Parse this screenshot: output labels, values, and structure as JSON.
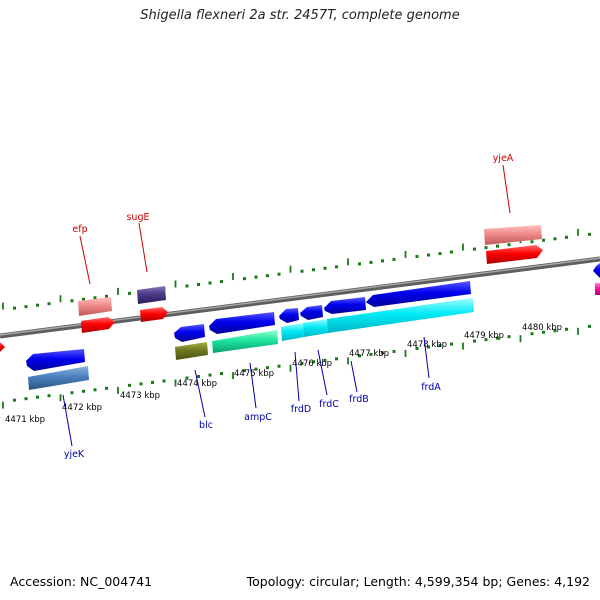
{
  "title": "Shigella flexneri 2a str. 2457T, complete genome",
  "accession_text": "Accession: NC_004741",
  "topology_text": "Topology: circular; Length: 4,599,354 bp; Genes: 4,192",
  "colors": {
    "backbone": "#808080",
    "ruler": "#1a7a1a",
    "gene_label_upper": "#cc0000",
    "gene_label_lower": "#0000aa"
  },
  "kbp_labels": [
    "4471 kbp",
    "4472 kbp",
    "4473 kbp",
    "4474 kbp",
    "4475 kbp",
    "4476 kbp",
    "4477 kbp",
    "4478 kbp",
    "4479 kbp",
    "4480 kbp"
  ],
  "gene_labels": [
    {
      "name": "efp",
      "side": "upper"
    },
    {
      "name": "sugE",
      "side": "upper"
    },
    {
      "name": "yjeA",
      "side": "upper"
    },
    {
      "name": "yjeK",
      "side": "lower"
    },
    {
      "name": "blc",
      "side": "lower"
    },
    {
      "name": "ampC",
      "side": "lower"
    },
    {
      "name": "frdD",
      "side": "lower"
    },
    {
      "name": "frdC",
      "side": "lower"
    },
    {
      "name": "frdB",
      "side": "lower"
    },
    {
      "name": "frdA",
      "side": "lower"
    }
  ]
}
